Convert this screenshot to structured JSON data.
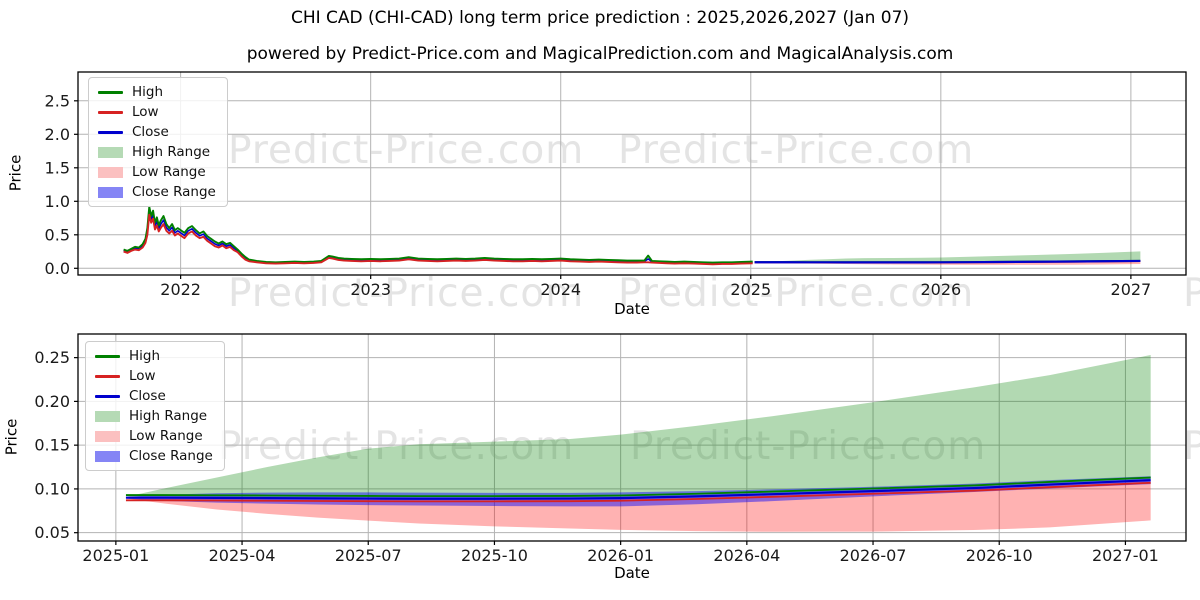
{
  "title": "CHI CAD (CHI-CAD) long term price prediction : 2025,2026,2027 (Jan 07)",
  "subtitle": "powered by Predict-Price.com and MagicalPrediction.com and MagicalAnalysis.com",
  "watermark": {
    "text": "Predict-Price.com",
    "color": "#e4e4e4"
  },
  "colors": {
    "high_line": "#008000",
    "low_line": "#d62222",
    "close_line": "#0000cd",
    "high_range_fill": "rgba(0,128,0,0.30)",
    "low_range_fill": "rgba(255,0,0,0.30)",
    "close_range_fill": "rgba(0,0,255,0.45)",
    "grid": "#b3b3b3",
    "axis": "#000000",
    "tick_text": "#1a1a1a"
  },
  "legend": {
    "items": [
      {
        "label": "High",
        "kind": "line",
        "color": "#008000"
      },
      {
        "label": "Low",
        "kind": "line",
        "color": "#d62222"
      },
      {
        "label": "Close",
        "kind": "line",
        "color": "#0000cd"
      },
      {
        "label": "High Range",
        "kind": "patch",
        "color": "#b5dab5"
      },
      {
        "label": "Low Range",
        "kind": "patch",
        "color": "#fbc0c0"
      },
      {
        "label": "Close Range",
        "kind": "patch",
        "color": "#8585f5"
      }
    ]
  },
  "chart_data": [
    {
      "type": "line",
      "name": "long-term-history-and-forecast",
      "xlabel": "Date",
      "ylabel": "Price",
      "xlim": [
        2021.46,
        2027.29
      ],
      "ylim": [
        -0.1,
        2.93
      ],
      "grid": true,
      "legend_position": "upper-left",
      "xticks": {
        "values": [
          2022,
          2023,
          2024,
          2025,
          2026,
          2027
        ],
        "labels": [
          "2022",
          "2023",
          "2024",
          "2025",
          "2026",
          "2027"
        ]
      },
      "yticks": {
        "values": [
          0.0,
          0.5,
          1.0,
          1.5,
          2.0,
          2.5
        ],
        "labels": [
          "0.0",
          "0.5",
          "1.0",
          "1.5",
          "2.0",
          "2.5"
        ]
      },
      "series": {
        "forecast_from": 1,
        "historical": {
          "t": [
            2021.7,
            2021.72,
            2021.74,
            2021.76,
            2021.78,
            2021.8,
            2021.815,
            2021.825,
            2021.835,
            2021.845,
            2021.855,
            2021.865,
            2021.875,
            2021.885,
            2021.895,
            2021.91,
            2021.925,
            2021.94,
            2021.955,
            2021.97,
            2021.985,
            2022.0,
            2022.02,
            2022.04,
            2022.06,
            2022.08,
            2022.1,
            2022.12,
            2022.14,
            2022.16,
            2022.18,
            2022.2,
            2022.22,
            2022.24,
            2022.26,
            2022.28,
            2022.3,
            2022.32,
            2022.34,
            2022.36,
            2022.4,
            2022.45,
            2022.5,
            2022.55,
            2022.6,
            2022.65,
            2022.7,
            2022.74,
            2022.78,
            2022.8,
            2022.83,
            2022.86,
            2022.9,
            2022.95,
            2023.0,
            2023.05,
            2023.1,
            2023.15,
            2023.2,
            2023.25,
            2023.3,
            2023.35,
            2023.4,
            2023.45,
            2023.5,
            2023.55,
            2023.6,
            2023.65,
            2023.7,
            2023.75,
            2023.8,
            2023.85,
            2023.9,
            2023.95,
            2024.0,
            2024.05,
            2024.1,
            2024.15,
            2024.2,
            2024.25,
            2024.3,
            2024.35,
            2024.4,
            2024.44,
            2024.46,
            2024.48,
            2024.52,
            2024.56,
            2024.6,
            2024.65,
            2024.7,
            2024.75,
            2024.8,
            2024.85,
            2024.9,
            2024.95,
            2025.01
          ],
          "high": [
            0.28,
            0.26,
            0.29,
            0.32,
            0.31,
            0.36,
            0.44,
            0.6,
            0.92,
            0.78,
            0.86,
            0.68,
            0.76,
            0.64,
            0.71,
            0.78,
            0.66,
            0.6,
            0.66,
            0.57,
            0.6,
            0.57,
            0.53,
            0.6,
            0.63,
            0.57,
            0.52,
            0.55,
            0.48,
            0.44,
            0.4,
            0.37,
            0.4,
            0.36,
            0.38,
            0.33,
            0.28,
            0.22,
            0.17,
            0.13,
            0.11,
            0.095,
            0.09,
            0.095,
            0.1,
            0.095,
            0.1,
            0.11,
            0.185,
            0.175,
            0.155,
            0.145,
            0.14,
            0.135,
            0.14,
            0.135,
            0.14,
            0.145,
            0.165,
            0.145,
            0.14,
            0.135,
            0.14,
            0.145,
            0.14,
            0.145,
            0.155,
            0.145,
            0.14,
            0.135,
            0.135,
            0.14,
            0.135,
            0.14,
            0.145,
            0.135,
            0.13,
            0.125,
            0.13,
            0.125,
            0.12,
            0.115,
            0.115,
            0.115,
            0.19,
            0.11,
            0.105,
            0.1,
            0.095,
            0.1,
            0.095,
            0.09,
            0.085,
            0.09,
            0.09,
            0.095,
            0.1
          ],
          "low": [
            0.25,
            0.23,
            0.26,
            0.28,
            0.27,
            0.31,
            0.38,
            0.5,
            0.8,
            0.68,
            0.74,
            0.58,
            0.64,
            0.55,
            0.6,
            0.66,
            0.56,
            0.52,
            0.56,
            0.49,
            0.52,
            0.49,
            0.45,
            0.52,
            0.55,
            0.49,
            0.45,
            0.47,
            0.41,
            0.37,
            0.33,
            0.31,
            0.34,
            0.3,
            0.32,
            0.27,
            0.24,
            0.18,
            0.13,
            0.105,
            0.09,
            0.075,
            0.07,
            0.075,
            0.08,
            0.075,
            0.08,
            0.09,
            0.155,
            0.145,
            0.125,
            0.115,
            0.11,
            0.105,
            0.11,
            0.105,
            0.11,
            0.115,
            0.135,
            0.115,
            0.11,
            0.105,
            0.11,
            0.115,
            0.11,
            0.115,
            0.125,
            0.115,
            0.11,
            0.105,
            0.105,
            0.11,
            0.105,
            0.11,
            0.115,
            0.105,
            0.1,
            0.095,
            0.1,
            0.095,
            0.09,
            0.085,
            0.085,
            0.09,
            0.09,
            0.085,
            0.08,
            0.075,
            0.07,
            0.075,
            0.07,
            0.065,
            0.06,
            0.065,
            0.065,
            0.07,
            0.075
          ]
        }
      }
    },
    {
      "type": "area",
      "name": "forecast-detail-2025-2027",
      "xlabel": "Date",
      "ylabel": "Price",
      "xlim": [
        2024.925,
        2027.12
      ],
      "ylim": [
        0.0405,
        0.277
      ],
      "grid": true,
      "legend_position": "upper-left",
      "xticks": {
        "values": [
          2025.0,
          2025.25,
          2025.5,
          2025.75,
          2026.0,
          2026.25,
          2026.5,
          2026.75,
          2027.0
        ],
        "labels": [
          "2025-01",
          "2025-04",
          "2025-07",
          "2025-10",
          "2026-01",
          "2026-04",
          "2026-07",
          "2026-10",
          "2027-01"
        ]
      },
      "yticks": {
        "values": [
          0.05,
          0.1,
          0.15,
          0.2,
          0.25
        ],
        "labels": [
          "0.05",
          "0.10",
          "0.15",
          "0.20",
          "0.25"
        ]
      },
      "series": {
        "forecast": {
          "t": [
            2025.02,
            2025.1,
            2025.2,
            2025.3,
            2025.4,
            2025.5,
            2025.6,
            2025.75,
            2025.9,
            2026.0,
            2026.15,
            2026.3,
            2026.5,
            2026.7,
            2026.85,
            2027.05
          ],
          "close": [
            0.09,
            0.09,
            0.0898,
            0.0895,
            0.0892,
            0.089,
            0.0888,
            0.0888,
            0.089,
            0.0895,
            0.0915,
            0.094,
            0.0975,
            0.101,
            0.105,
            0.11
          ],
          "high_line": [
            0.093,
            0.093,
            0.0928,
            0.0925,
            0.0922,
            0.092,
            0.0918,
            0.0918,
            0.092,
            0.0925,
            0.0945,
            0.097,
            0.1005,
            0.104,
            0.108,
            0.113
          ],
          "low_line": [
            0.087,
            0.087,
            0.0868,
            0.0865,
            0.0862,
            0.086,
            0.0858,
            0.0858,
            0.086,
            0.0865,
            0.0885,
            0.091,
            0.0945,
            0.098,
            0.102,
            0.107
          ],
          "high_range_top": [
            0.091,
            0.101,
            0.113,
            0.125,
            0.136,
            0.146,
            0.151,
            0.154,
            0.157,
            0.162,
            0.172,
            0.183,
            0.199,
            0.216,
            0.23,
            0.253
          ],
          "low_range_bottom": [
            0.089,
            0.083,
            0.0765,
            0.0715,
            0.0672,
            0.0638,
            0.0605,
            0.0572,
            0.0548,
            0.0532,
            0.0518,
            0.051,
            0.0512,
            0.053,
            0.056,
            0.064
          ],
          "close_range_top": [
            0.091,
            0.0935,
            0.095,
            0.0958,
            0.096,
            0.096,
            0.0958,
            0.0955,
            0.0955,
            0.096,
            0.0975,
            0.0995,
            0.1025,
            0.106,
            0.11,
            0.1145
          ],
          "close_range_bottom": [
            0.089,
            0.0862,
            0.0843,
            0.0832,
            0.0822,
            0.0815,
            0.081,
            0.0805,
            0.08,
            0.08,
            0.0825,
            0.086,
            0.0915,
            0.0965,
            0.1005,
            0.1055
          ]
        }
      }
    }
  ]
}
